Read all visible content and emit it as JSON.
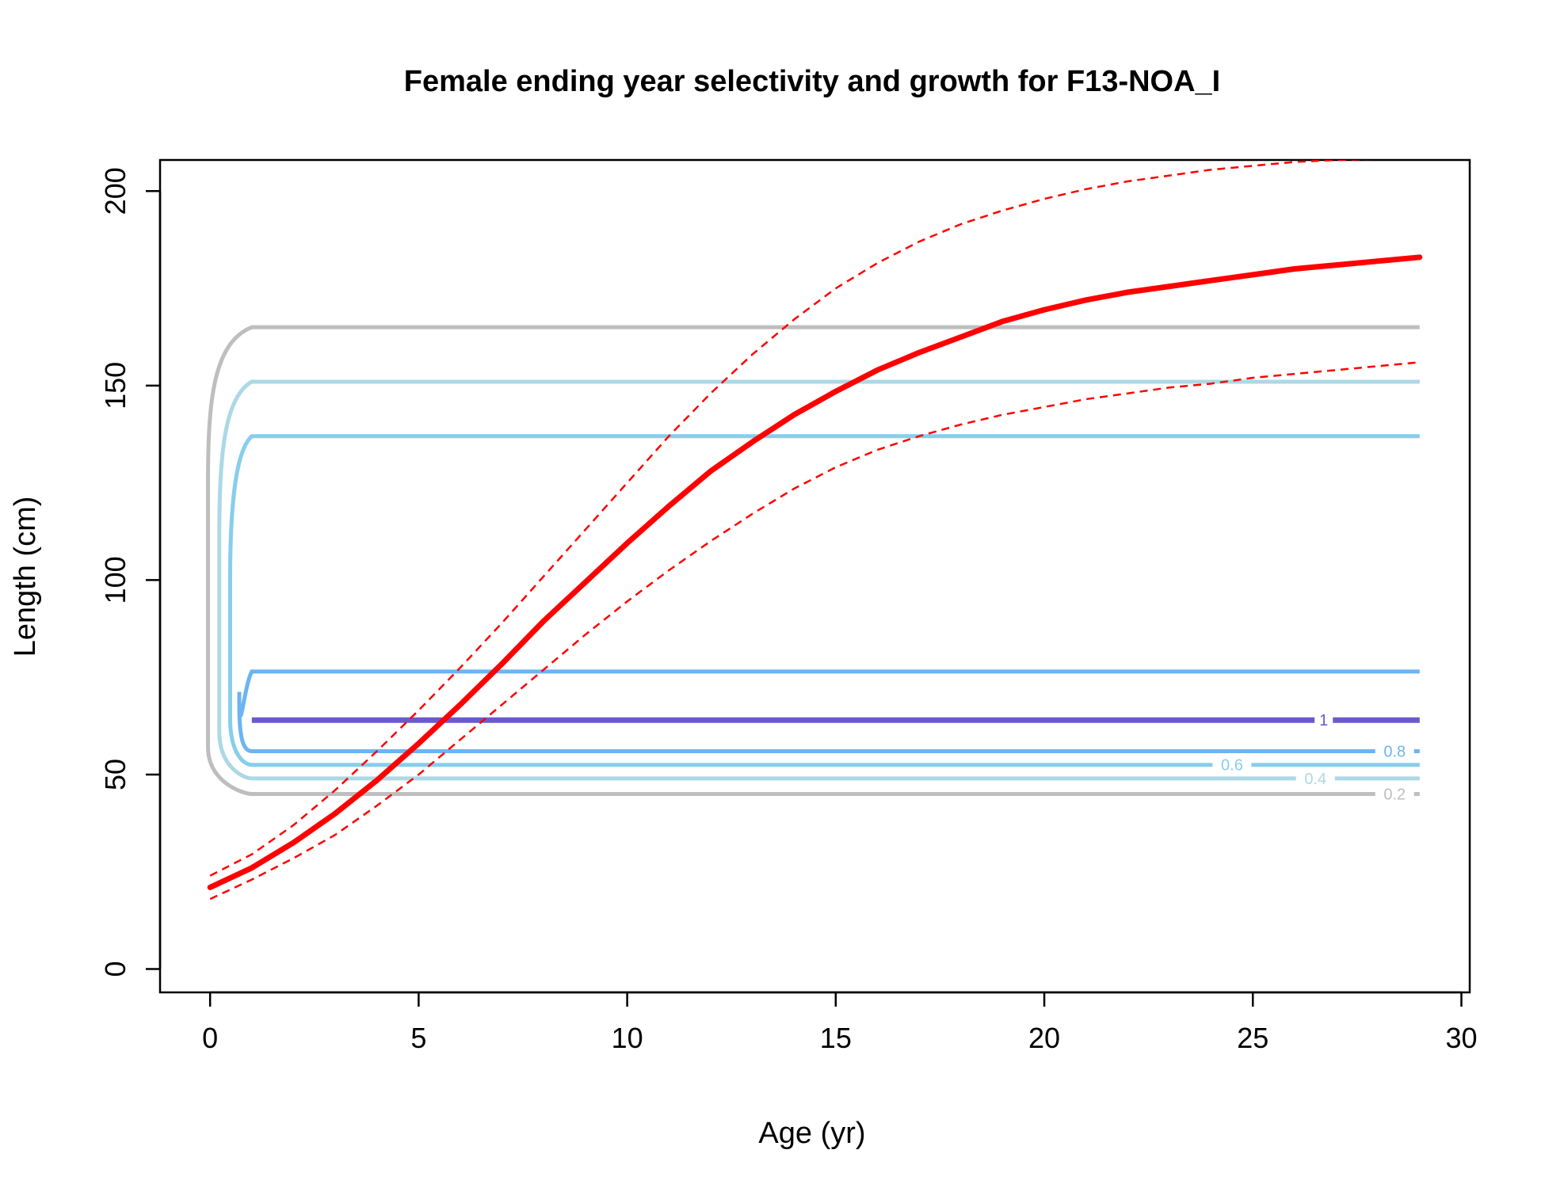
{
  "chart_data": {
    "type": "line",
    "title": "Female ending year selectivity and growth for F13-NOA_I",
    "xlabel": "Age (yr)",
    "ylabel": "Length (cm)",
    "xlim": [
      -1.2,
      30.2
    ],
    "ylim": [
      -6,
      208
    ],
    "xticks": [
      0,
      5,
      10,
      15,
      20,
      25,
      30
    ],
    "yticks": [
      0,
      50,
      100,
      150,
      200
    ],
    "grid": false,
    "growth": {
      "color": "#ff0000",
      "x": [
        0,
        1,
        2,
        3,
        4,
        5,
        6,
        7,
        8,
        9,
        10,
        11,
        12,
        13,
        14,
        15,
        16,
        17,
        18,
        19,
        20,
        21,
        22,
        23,
        24,
        25,
        26,
        27,
        28,
        29
      ],
      "mean": [
        21,
        26,
        32.5,
        40,
        48.5,
        58,
        68,
        78.5,
        89.5,
        99.5,
        109.5,
        119,
        128,
        135.5,
        142.5,
        148.5,
        154,
        158.5,
        162.5,
        166.5,
        169.5,
        172,
        174,
        175.5,
        177,
        178.5,
        180,
        181,
        182,
        183
      ],
      "upper": [
        24,
        29.5,
        37,
        46,
        56,
        66.5,
        77.5,
        89,
        101,
        113,
        125,
        137,
        148,
        158,
        167,
        175,
        181.5,
        187,
        191.5,
        195,
        198,
        200.5,
        202.5,
        204,
        205.5,
        206.5,
        207.5,
        208,
        208.3,
        208.5
      ],
      "lower": [
        18,
        23,
        28.5,
        34.5,
        42,
        50,
        59,
        68,
        77,
        86,
        94.5,
        102.5,
        110,
        117,
        123.5,
        129,
        133.5,
        137,
        140,
        142.5,
        144.5,
        146.5,
        148,
        149.5,
        150.5,
        152,
        153,
        154,
        155,
        156
      ]
    },
    "selectivity_contours": [
      {
        "level": "0.2",
        "color": "#bebebe",
        "upper": 165,
        "lower": 45,
        "label": "0.2",
        "label_x": 28.4,
        "label_y": 45
      },
      {
        "level": "0.4",
        "color": "#add8e6",
        "upper": 151,
        "lower": 49,
        "label": "0.4",
        "label_x": 26.5,
        "label_y": 49
      },
      {
        "level": "0.6",
        "color": "#87ceeb",
        "upper": 137,
        "lower": 52.5,
        "label": "0.6",
        "label_x": 24.5,
        "label_y": 52.5
      },
      {
        "level": "0.8",
        "color": "#6cb4f2",
        "upper": 76.5,
        "lower": 56,
        "label": "0.8",
        "label_x": 28.4,
        "label_y": 56
      },
      {
        "level": "1",
        "color": "#6a5acd",
        "upper": 64,
        "lower": 64,
        "label": "1",
        "label_x": 26.7,
        "label_y": 64
      }
    ]
  }
}
